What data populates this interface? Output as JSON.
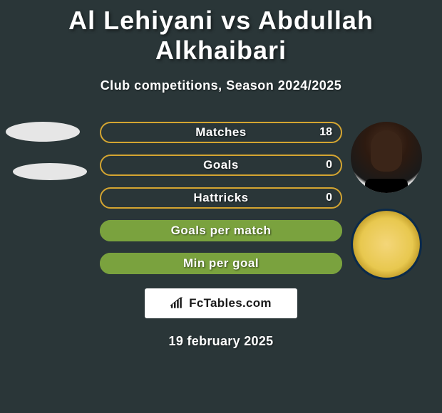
{
  "title": "Al Lehiyani vs Abdullah Alkhaibari",
  "subtitle": "Club competitions, Season 2024/2025",
  "date": "19 february 2025",
  "colors": {
    "background": "#2a3638",
    "text": "#ffffff",
    "leftEllipse": "#e6e6e6",
    "fctablesBoxBg": "#ffffff",
    "fctablesText": "#1a1a1a"
  },
  "fctables_label": "FcTables.com",
  "stats": [
    {
      "label": "Matches",
      "value_right": "18",
      "fill_pct": 0,
      "border_color": "#d4a531",
      "fill_color": "#d4a531"
    },
    {
      "label": "Goals",
      "value_right": "0",
      "fill_pct": 0,
      "border_color": "#d4a531",
      "fill_color": "#d4a531"
    },
    {
      "label": "Hattricks",
      "value_right": "0",
      "fill_pct": 0,
      "border_color": "#d4a531",
      "fill_color": "#d4a531"
    },
    {
      "label": "Goals per match",
      "value_right": "",
      "fill_pct": 100,
      "border_color": "#7aa23e",
      "fill_color": "#7aa23e"
    },
    {
      "label": "Min per goal",
      "value_right": "",
      "fill_pct": 100,
      "border_color": "#7aa23e",
      "fill_color": "#7aa23e"
    }
  ]
}
